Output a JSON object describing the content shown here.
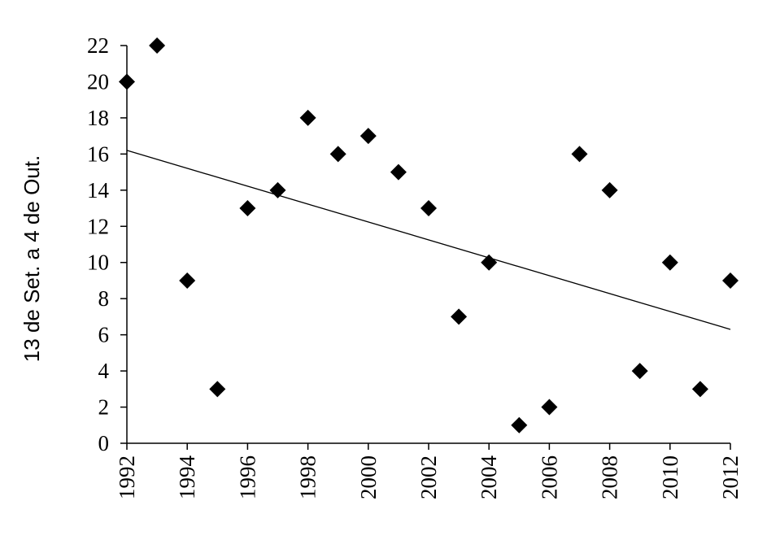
{
  "chart_data": {
    "type": "scatter",
    "title": "",
    "xlabel": "",
    "ylabel": "13 de Set. a 4 de Out.",
    "xlim": [
      1992,
      2012
    ],
    "ylim": [
      0,
      22
    ],
    "x_ticks": [
      "1992",
      "1994",
      "1996",
      "1998",
      "2000",
      "2002",
      "2004",
      "2006",
      "2008",
      "2010",
      "2012"
    ],
    "y_ticks": [
      "0",
      "2",
      "4",
      "6",
      "8",
      "10",
      "12",
      "14",
      "16",
      "18",
      "20",
      "22"
    ],
    "grid": false,
    "legend": "none",
    "marker": "diamond",
    "marker_color": "#000000",
    "series": [
      {
        "x": [
          1992,
          1993,
          1994,
          1995,
          1996,
          1997,
          1998,
          1999,
          2000,
          2001,
          2002,
          2003,
          2004,
          2005,
          2006,
          2007,
          2008,
          2009,
          2010,
          2011,
          2012
        ],
        "y": [
          20,
          22,
          9,
          3,
          13,
          14,
          18,
          16,
          17,
          15,
          13,
          7,
          10,
          1,
          2,
          16,
          14,
          4,
          10,
          3,
          9
        ]
      }
    ],
    "trendline": {
      "type": "linear",
      "x": [
        1992,
        2012
      ],
      "y": [
        16.2,
        6.3
      ],
      "color": "#000000"
    }
  }
}
